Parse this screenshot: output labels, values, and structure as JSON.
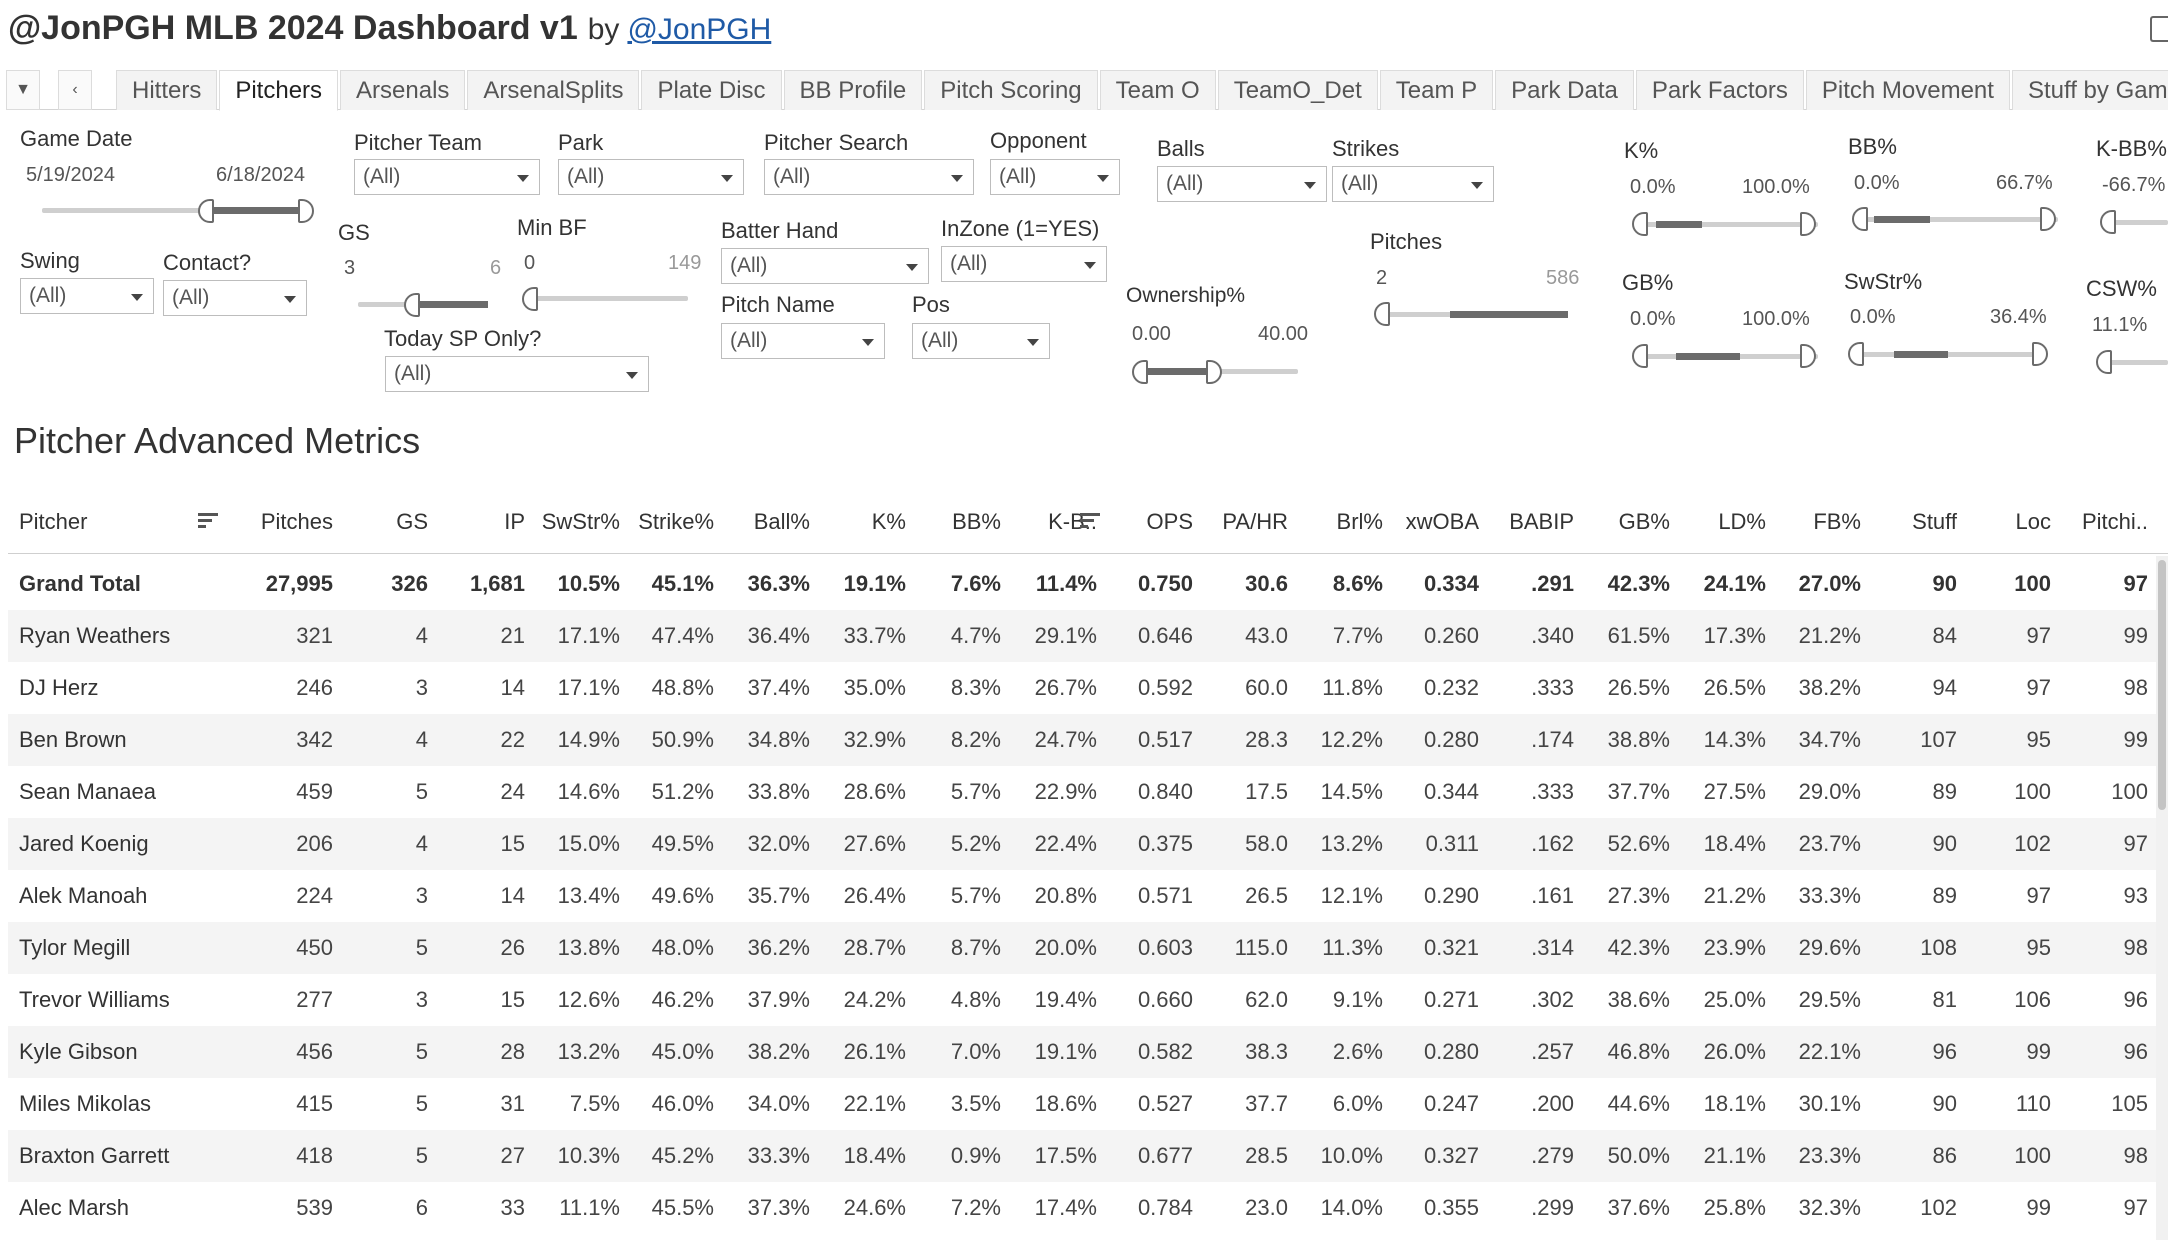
{
  "header": {
    "title": "@JonPGH MLB 2024 Dashboard v1",
    "by": "by",
    "author": "@JonPGH"
  },
  "tabs": [
    {
      "label": "Hitters",
      "active": false
    },
    {
      "label": "Pitchers",
      "active": true
    },
    {
      "label": "Arsenals",
      "active": false
    },
    {
      "label": "ArsenalSplits",
      "active": false
    },
    {
      "label": "Plate Disc",
      "active": false
    },
    {
      "label": "BB Profile",
      "active": false
    },
    {
      "label": "Pitch Scoring",
      "active": false
    },
    {
      "label": "Team O",
      "active": false
    },
    {
      "label": "TeamO_Det",
      "active": false
    },
    {
      "label": "Team P",
      "active": false
    },
    {
      "label": "Park Data",
      "active": false
    },
    {
      "label": "Park Factors",
      "active": false
    },
    {
      "label": "Pitch Movement",
      "active": false
    },
    {
      "label": "Stuff by Gam",
      "active": false
    }
  ],
  "tab_controls": {
    "menu": "▼",
    "prev": "‹"
  },
  "filters": {
    "game_date": {
      "label": "Game Date",
      "min": "5/19/2024",
      "max": "6/18/2024"
    },
    "pitcher_team": {
      "label": "Pitcher Team",
      "value": "(All)"
    },
    "park": {
      "label": "Park",
      "value": "(All)"
    },
    "pitcher_search": {
      "label": "Pitcher Search",
      "value": "(All)"
    },
    "opponent": {
      "label": "Opponent",
      "value": "(All)"
    },
    "balls": {
      "label": "Balls",
      "value": "(All)"
    },
    "strikes": {
      "label": "Strikes",
      "value": "(All)"
    },
    "swing": {
      "label": "Swing",
      "value": "(All)"
    },
    "contact": {
      "label": "Contact?",
      "value": "(All)"
    },
    "gs": {
      "label": "GS",
      "min": "3",
      "max": "6"
    },
    "min_bf": {
      "label": "Min BF",
      "min": "0",
      "max": "149"
    },
    "today_sp": {
      "label": "Today SP Only?",
      "value": "(All)"
    },
    "batter_hand": {
      "label": "Batter Hand",
      "value": "(All)"
    },
    "inzone": {
      "label": "InZone (1=YES)",
      "value": "(All)"
    },
    "pitch_name": {
      "label": "Pitch Name",
      "value": "(All)"
    },
    "pos": {
      "label": "Pos",
      "value": "(All)"
    },
    "ownership": {
      "label": "Ownership%",
      "min": "0.00",
      "max": "40.00"
    },
    "pitches": {
      "label": "Pitches",
      "min": "2",
      "max": "586"
    },
    "k_pct": {
      "label": "K%",
      "min": "0.0%",
      "max": "100.0%"
    },
    "bb_pct": {
      "label": "BB%",
      "min": "0.0%",
      "max": "66.7%"
    },
    "kbb_pct": {
      "label": "K-BB%",
      "min": "-66.7%"
    },
    "gb_pct": {
      "label": "GB%",
      "min": "0.0%",
      "max": "100.0%"
    },
    "swstr_pct": {
      "label": "SwStr%",
      "min": "0.0%",
      "max": "36.4%"
    },
    "csw_pct": {
      "label": "CSW%",
      "min": "11.1%"
    }
  },
  "sheet_title": "Pitcher Advanced Metrics",
  "table": {
    "columns": [
      "Pitcher",
      "Pitches",
      "GS",
      "IP",
      "SwStr%",
      "Strike%",
      "Ball%",
      "K%",
      "BB%",
      "K-B..",
      "OPS",
      "PA/HR",
      "Brl%",
      "xwOBA",
      "BABIP",
      "GB%",
      "LD%",
      "FB%",
      "Stuff",
      "Loc",
      "Pitchi.."
    ],
    "total": [
      "Grand Total",
      "27,995",
      "326",
      "1,681",
      "10.5%",
      "45.1%",
      "36.3%",
      "19.1%",
      "7.6%",
      "11.4%",
      "0.750",
      "30.6",
      "8.6%",
      "0.334",
      ".291",
      "42.3%",
      "24.1%",
      "27.0%",
      "90",
      "100",
      "97"
    ],
    "rows": [
      [
        "Ryan Weathers",
        "321",
        "4",
        "21",
        "17.1%",
        "47.4%",
        "36.4%",
        "33.7%",
        "4.7%",
        "29.1%",
        "0.646",
        "43.0",
        "7.7%",
        "0.260",
        ".340",
        "61.5%",
        "17.3%",
        "21.2%",
        "84",
        "97",
        "99"
      ],
      [
        "DJ Herz",
        "246",
        "3",
        "14",
        "17.1%",
        "48.8%",
        "37.4%",
        "35.0%",
        "8.3%",
        "26.7%",
        "0.592",
        "60.0",
        "11.8%",
        "0.232",
        ".333",
        "26.5%",
        "26.5%",
        "38.2%",
        "94",
        "97",
        "98"
      ],
      [
        "Ben Brown",
        "342",
        "4",
        "22",
        "14.9%",
        "50.9%",
        "34.8%",
        "32.9%",
        "8.2%",
        "24.7%",
        "0.517",
        "28.3",
        "12.2%",
        "0.280",
        ".174",
        "38.8%",
        "14.3%",
        "34.7%",
        "107",
        "95",
        "99"
      ],
      [
        "Sean Manaea",
        "459",
        "5",
        "24",
        "14.6%",
        "51.2%",
        "33.8%",
        "28.6%",
        "5.7%",
        "22.9%",
        "0.840",
        "17.5",
        "14.5%",
        "0.344",
        ".333",
        "37.7%",
        "27.5%",
        "29.0%",
        "89",
        "100",
        "100"
      ],
      [
        "Jared Koenig",
        "206",
        "4",
        "15",
        "15.0%",
        "49.5%",
        "32.0%",
        "27.6%",
        "5.2%",
        "22.4%",
        "0.375",
        "58.0",
        "13.2%",
        "0.311",
        ".162",
        "52.6%",
        "18.4%",
        "23.7%",
        "90",
        "102",
        "97"
      ],
      [
        "Alek Manoah",
        "224",
        "3",
        "14",
        "13.4%",
        "49.6%",
        "35.7%",
        "26.4%",
        "5.7%",
        "20.8%",
        "0.571",
        "26.5",
        "12.1%",
        "0.290",
        ".161",
        "27.3%",
        "21.2%",
        "33.3%",
        "89",
        "97",
        "93"
      ],
      [
        "Tylor Megill",
        "450",
        "5",
        "26",
        "13.8%",
        "48.0%",
        "36.2%",
        "28.7%",
        "8.7%",
        "20.0%",
        "0.603",
        "115.0",
        "11.3%",
        "0.321",
        ".314",
        "42.3%",
        "23.9%",
        "29.6%",
        "108",
        "95",
        "98"
      ],
      [
        "Trevor Williams",
        "277",
        "3",
        "15",
        "12.6%",
        "46.2%",
        "37.9%",
        "24.2%",
        "4.8%",
        "19.4%",
        "0.660",
        "62.0",
        "9.1%",
        "0.271",
        ".302",
        "38.6%",
        "25.0%",
        "29.5%",
        "81",
        "106",
        "96"
      ],
      [
        "Kyle Gibson",
        "456",
        "5",
        "28",
        "13.2%",
        "45.0%",
        "38.2%",
        "26.1%",
        "7.0%",
        "19.1%",
        "0.582",
        "38.3",
        "2.6%",
        "0.280",
        ".257",
        "46.8%",
        "26.0%",
        "22.1%",
        "96",
        "99",
        "96"
      ],
      [
        "Miles Mikolas",
        "415",
        "5",
        "31",
        "7.5%",
        "46.0%",
        "34.0%",
        "22.1%",
        "3.5%",
        "18.6%",
        "0.527",
        "37.7",
        "6.0%",
        "0.247",
        ".200",
        "44.6%",
        "18.1%",
        "30.1%",
        "90",
        "110",
        "105"
      ],
      [
        "Braxton Garrett",
        "418",
        "5",
        "27",
        "10.3%",
        "45.2%",
        "33.3%",
        "18.4%",
        "0.9%",
        "17.5%",
        "0.677",
        "28.5",
        "10.0%",
        "0.327",
        ".279",
        "50.0%",
        "21.1%",
        "23.3%",
        "86",
        "100",
        "98"
      ],
      [
        "Alec Marsh",
        "539",
        "6",
        "33",
        "11.1%",
        "45.5%",
        "37.3%",
        "24.6%",
        "7.2%",
        "17.4%",
        "0.784",
        "23.0",
        "14.0%",
        "0.355",
        ".299",
        "37.6%",
        "25.8%",
        "32.3%",
        "102",
        "99",
        "97"
      ]
    ]
  }
}
